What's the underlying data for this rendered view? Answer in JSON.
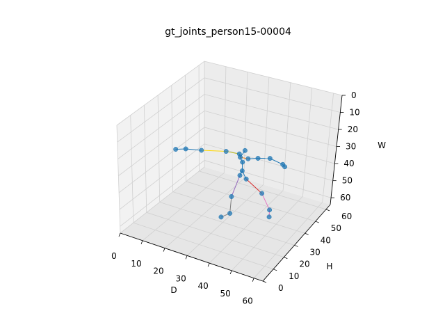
{
  "chart_data": {
    "type": "scatter",
    "projection": "3d",
    "title": "gt_joints_person15-00004",
    "xlabel": "D",
    "ylabel": "H",
    "zlabel": "W",
    "xlim": [
      0,
      64
    ],
    "ylim": [
      0,
      64
    ],
    "zlim": [
      64,
      0
    ],
    "xticks": [
      "0",
      "10",
      "20",
      "30",
      "40",
      "50",
      "60"
    ],
    "yticks": [
      "0",
      "10",
      "20",
      "30",
      "40",
      "50",
      "60"
    ],
    "zticks": [
      "0",
      "10",
      "20",
      "30",
      "40",
      "50",
      "60"
    ],
    "grid": true,
    "point_color": "#1f77b4",
    "joints": [
      {
        "name": "head",
        "d": 35,
        "h": 38,
        "w": 26
      },
      {
        "name": "neck",
        "d": 34,
        "h": 36,
        "w": 29
      },
      {
        "name": "spine",
        "d": 34,
        "h": 38,
        "w": 33
      },
      {
        "name": "pelvis",
        "d": 34,
        "h": 38,
        "w": 38
      },
      {
        "name": "r_clavicle",
        "d": 33,
        "h": 37,
        "w": 28
      },
      {
        "name": "r_shoulder",
        "d": 28,
        "h": 35,
        "w": 27
      },
      {
        "name": "r_elbow",
        "d": 19,
        "h": 31,
        "w": 27
      },
      {
        "name": "r_wrist",
        "d": 13,
        "h": 29,
        "w": 27
      },
      {
        "name": "r_hand",
        "d": 9,
        "h": 28,
        "w": 28
      },
      {
        "name": "l_clavicle",
        "d": 36,
        "h": 39,
        "w": 31
      },
      {
        "name": "l_shoulder",
        "d": 40,
        "h": 40,
        "w": 30
      },
      {
        "name": "l_elbow",
        "d": 45,
        "h": 41,
        "w": 29
      },
      {
        "name": "l_wrist",
        "d": 50,
        "h": 43,
        "w": 32
      },
      {
        "name": "l_hand",
        "d": 51,
        "h": 43,
        "w": 33
      },
      {
        "name": "r_hip",
        "d": 33,
        "h": 38,
        "w": 41
      },
      {
        "name": "r_knee",
        "d": 31,
        "h": 35,
        "w": 52
      },
      {
        "name": "r_ankle",
        "d": 31,
        "h": 34,
        "w": 61
      },
      {
        "name": "r_foot",
        "d": 28,
        "h": 32,
        "w": 63
      },
      {
        "name": "l_hip",
        "d": 36,
        "h": 38,
        "w": 42
      },
      {
        "name": "l_knee",
        "d": 42,
        "h": 41,
        "w": 50
      },
      {
        "name": "l_ankle",
        "d": 46,
        "h": 41,
        "w": 58
      },
      {
        "name": "l_foot",
        "d": 46,
        "h": 41,
        "w": 62
      }
    ],
    "bones": [
      {
        "from": 0,
        "to": 1,
        "color": "#1f77b4"
      },
      {
        "from": 1,
        "to": 2,
        "color": "#1f77b4"
      },
      {
        "from": 2,
        "to": 3,
        "color": "#1f77b4"
      },
      {
        "from": 1,
        "to": 4,
        "color": "#1f77b4"
      },
      {
        "from": 4,
        "to": 5,
        "color": "#bcbd22"
      },
      {
        "from": 5,
        "to": 6,
        "color": "#ffd700"
      },
      {
        "from": 6,
        "to": 7,
        "color": "#1f77b4"
      },
      {
        "from": 7,
        "to": 8,
        "color": "#1f77b4"
      },
      {
        "from": 1,
        "to": 9,
        "color": "#ff7f0e"
      },
      {
        "from": 9,
        "to": 10,
        "color": "#1f77b4"
      },
      {
        "from": 10,
        "to": 11,
        "color": "#1f77b4"
      },
      {
        "from": 11,
        "to": 12,
        "color": "#1f77b4"
      },
      {
        "from": 12,
        "to": 13,
        "color": "#1f77b4"
      },
      {
        "from": 3,
        "to": 14,
        "color": "#1f77b4"
      },
      {
        "from": 14,
        "to": 15,
        "color": "#9467bd"
      },
      {
        "from": 15,
        "to": 16,
        "color": "#7f7f7f"
      },
      {
        "from": 16,
        "to": 17,
        "color": "#7f7f7f"
      },
      {
        "from": 3,
        "to": 18,
        "color": "#1f77b4"
      },
      {
        "from": 18,
        "to": 19,
        "color": "#d62728"
      },
      {
        "from": 19,
        "to": 20,
        "color": "#e377c2"
      },
      {
        "from": 20,
        "to": 21,
        "color": "#e377c2"
      }
    ]
  }
}
